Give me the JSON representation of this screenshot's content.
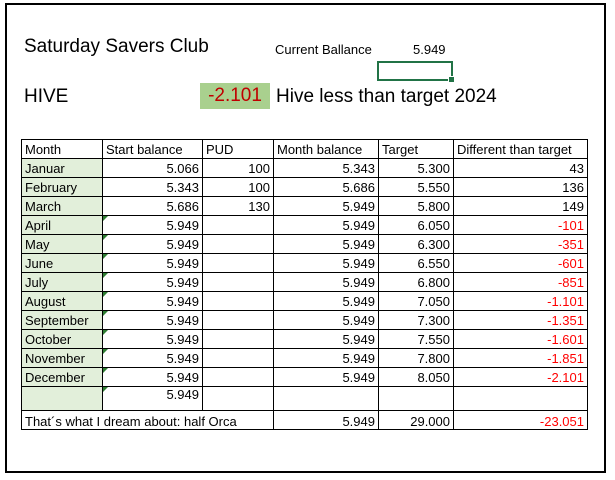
{
  "header": {
    "title": "Saturday Savers Club",
    "current_balance_label": "Current Ballance",
    "current_balance_value": "5.949",
    "hive_label": "HIVE",
    "hive_value": "-2.101",
    "hive_text": "Hive less than  target 2024"
  },
  "colors": {
    "negative": "#ff0000",
    "hive_fill": "#a9d08e",
    "month_fill": "#e2efda",
    "selection": "#217346"
  },
  "table": {
    "headers": [
      "Month",
      "Start balance",
      "PUD",
      "Month balance",
      "Target",
      "Different than target"
    ],
    "rows": [
      [
        "Januar",
        "5.066",
        "100",
        "5.343",
        "5.300",
        "43"
      ],
      [
        "February",
        "5.343",
        "100",
        "5.686",
        "5.550",
        "136"
      ],
      [
        "March",
        "5.686",
        "130",
        "5.949",
        "5.800",
        "149"
      ],
      [
        "April",
        "5.949",
        "",
        "5.949",
        "6.050",
        "-101"
      ],
      [
        "May",
        "5.949",
        "",
        "5.949",
        "6.300",
        "-351"
      ],
      [
        "June",
        "5.949",
        "",
        "5.949",
        "6.550",
        "-601"
      ],
      [
        "July",
        "5.949",
        "",
        "5.949",
        "6.800",
        "-851"
      ],
      [
        "August",
        "5.949",
        "",
        "5.949",
        "7.050",
        "-1.101"
      ],
      [
        "September",
        "5.949",
        "",
        "5.949",
        "7.300",
        "-1.351"
      ],
      [
        "October",
        "5.949",
        "",
        "5.949",
        "7.550",
        "-1.601"
      ],
      [
        "November",
        "5.949",
        "",
        "5.949",
        "7.800",
        "-1.851"
      ],
      [
        "December",
        "5.949",
        "",
        "5.949",
        "8.050",
        "-2.101"
      ]
    ],
    "extra_start_balance": "5.949",
    "footer": {
      "label": "That´s what I dream about: half Orca",
      "month_balance": "5.949",
      "target": "29.000",
      "difference": "-23.051"
    }
  }
}
